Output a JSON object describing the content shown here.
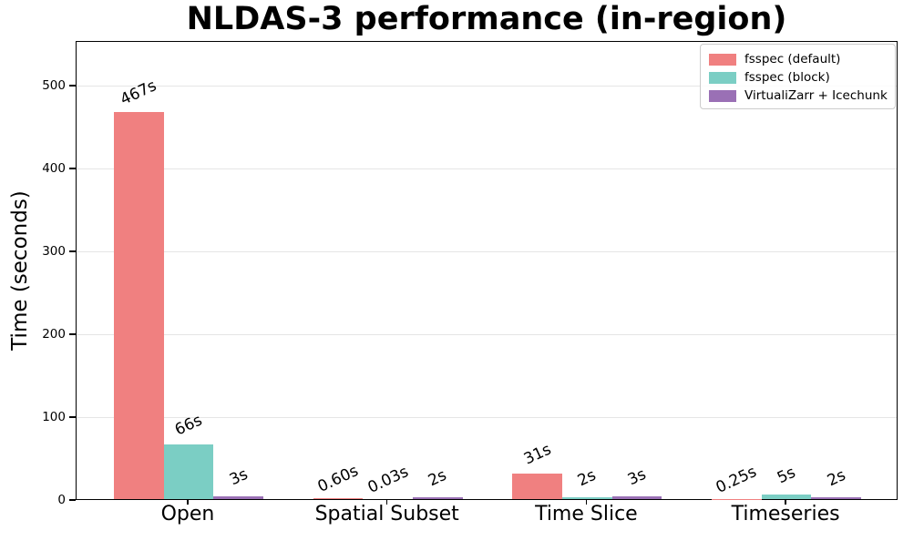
{
  "chart_data": {
    "type": "bar",
    "title": "NLDAS-3 performance (in-region)",
    "xlabel": "",
    "ylabel": "Time (seconds)",
    "categories": [
      "Open",
      "Spatial Subset",
      "Time Slice",
      "Timeseries"
    ],
    "series": [
      {
        "name": "fsspec (default)",
        "color": "#f08080",
        "values": [
          467,
          0.6,
          31,
          0.25
        ],
        "bar_labels": [
          "467s",
          "0.60s",
          "31s",
          "0.25s"
        ]
      },
      {
        "name": "fsspec (block)",
        "color": "#7bcec4",
        "values": [
          66,
          0.03,
          2,
          5
        ],
        "bar_labels": [
          "66s",
          "0.03s",
          "2s",
          "5s"
        ]
      },
      {
        "name": "VirtualiZarr + Icechunk",
        "color": "#9a70b5",
        "values": [
          3,
          2,
          3,
          2
        ],
        "bar_labels": [
          "3s",
          "2s",
          "3s",
          "2s"
        ]
      }
    ],
    "yticks": [
      0,
      100,
      200,
      300,
      400,
      500
    ],
    "ylim": [
      0,
      554
    ],
    "grid": "horizontal",
    "grid_color": "#e5e5e5",
    "axis_color": "#000000",
    "text_color": "#000000",
    "legend_position": "upper right",
    "bar_label_rotation_deg": -25
  }
}
